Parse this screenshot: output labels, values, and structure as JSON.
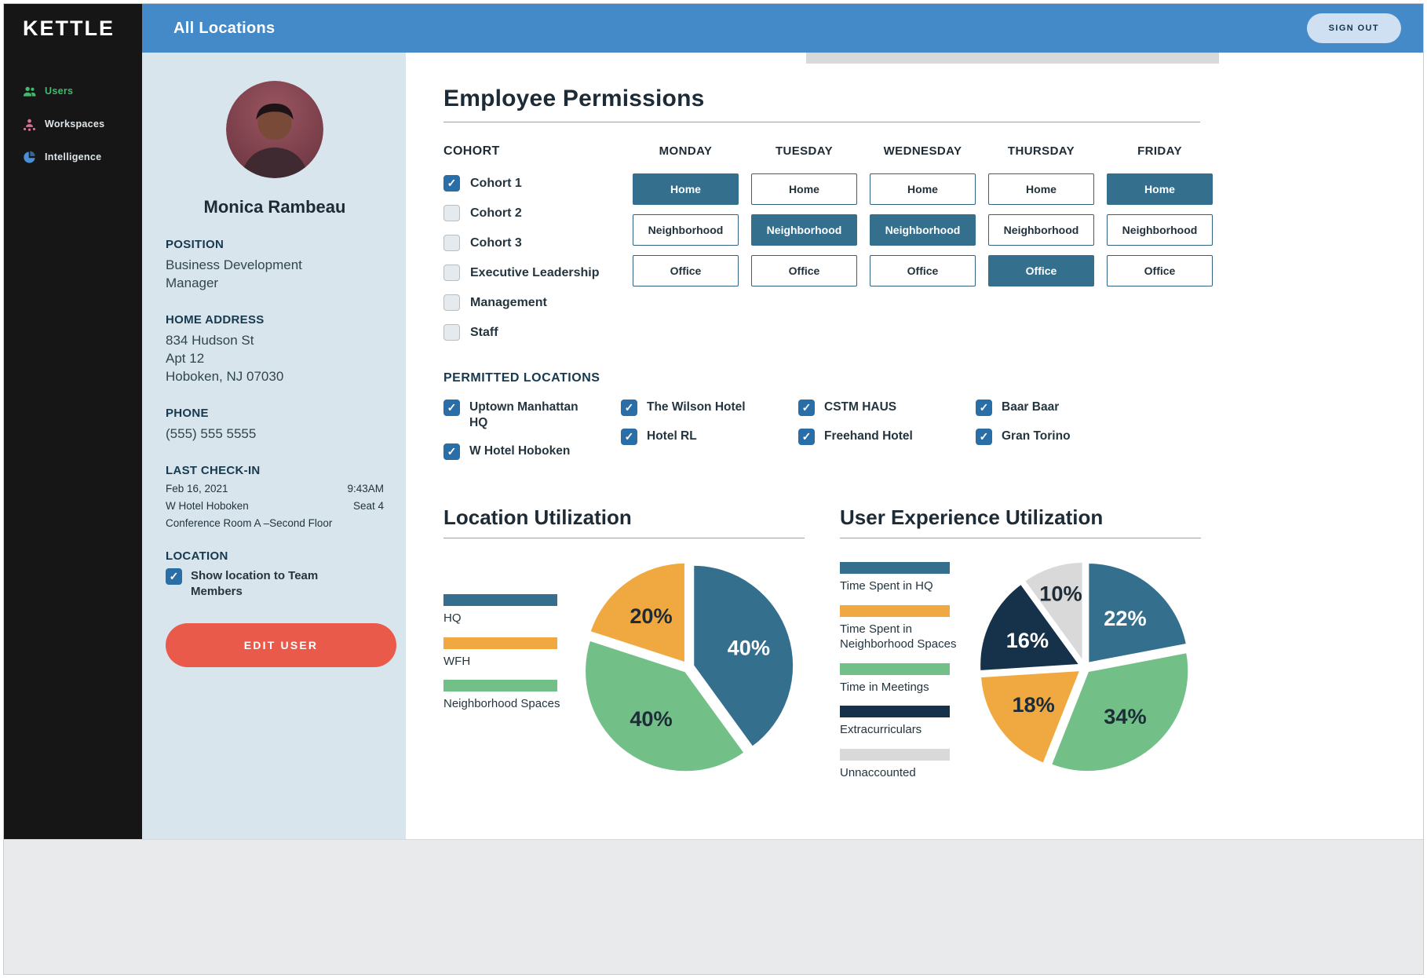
{
  "brand": {
    "logo": "KETTLE"
  },
  "topbar": {
    "title": "All Locations",
    "sign_out": "SIGN OUT"
  },
  "sidebar": {
    "items": [
      {
        "label": "Users",
        "icon": "users-icon",
        "icon_color": "#43b96e",
        "label_color": "#43b96e"
      },
      {
        "label": "Workspaces",
        "icon": "workspaces-icon",
        "icon_color": "#d87093",
        "label_color": "#dfe6ea"
      },
      {
        "label": "Intelligence",
        "icon": "intelligence-icon",
        "icon_color": "#4a90d9",
        "label_color": "#dfe6ea"
      }
    ]
  },
  "profile": {
    "name": "Monica Rambeau",
    "edit_button": "EDIT USER",
    "sections": {
      "position": {
        "label": "POSITION",
        "value": "Business Development Manager"
      },
      "home_address": {
        "label": "HOME ADDRESS",
        "lines": [
          "834 Hudson St",
          "Apt 12",
          "Hoboken, NJ 07030"
        ]
      },
      "phone": {
        "label": "PHONE",
        "value": "(555) 555 5555"
      },
      "last_checkin": {
        "label": "LAST CHECK-IN",
        "rows": [
          [
            "Feb 16, 2021",
            "9:43AM"
          ],
          [
            "W Hotel Hoboken",
            "Seat 4"
          ]
        ],
        "note": "Conference Room A –Second Floor"
      },
      "location": {
        "label": "LOCATION",
        "checkbox": {
          "label": "Show location to Team Members",
          "checked": true
        }
      }
    }
  },
  "permissions": {
    "title": "Employee Permissions",
    "cohort": {
      "label": "COHORT",
      "options": [
        {
          "label": "Cohort 1",
          "checked": true
        },
        {
          "label": "Cohort 2",
          "checked": false
        },
        {
          "label": "Cohort 3",
          "checked": false
        },
        {
          "label": "Executive Leadership",
          "checked": false
        },
        {
          "label": "Management",
          "checked": false
        },
        {
          "label": "Staff",
          "checked": false
        }
      ]
    },
    "days": [
      {
        "name": "MONDAY",
        "options": [
          {
            "label": "Home",
            "selected": true
          },
          {
            "label": "Neighborhood",
            "selected": false
          },
          {
            "label": "Office",
            "selected": false
          }
        ]
      },
      {
        "name": "TUESDAY",
        "options": [
          {
            "label": "Home",
            "selected": false
          },
          {
            "label": "Neighborhood",
            "selected": true
          },
          {
            "label": "Office",
            "selected": false
          }
        ]
      },
      {
        "name": "WEDNESDAY",
        "options": [
          {
            "label": "Home",
            "selected": false
          },
          {
            "label": "Neighborhood",
            "selected": true
          },
          {
            "label": "Office",
            "selected": false
          }
        ]
      },
      {
        "name": "THURSDAY",
        "options": [
          {
            "label": "Home",
            "selected": false
          },
          {
            "label": "Neighborhood",
            "selected": false
          },
          {
            "label": "Office",
            "selected": true
          }
        ]
      },
      {
        "name": "FRIDAY",
        "options": [
          {
            "label": "Home",
            "selected": true
          },
          {
            "label": "Neighborhood",
            "selected": false
          },
          {
            "label": "Office",
            "selected": false
          }
        ]
      }
    ],
    "locations": {
      "label": "PERMITTED LOCATIONS",
      "columns": [
        [
          {
            "label": "Uptown Manhattan HQ",
            "checked": true
          },
          {
            "label": "W Hotel Hoboken",
            "checked": true
          }
        ],
        [
          {
            "label": "The Wilson Hotel",
            "checked": true
          },
          {
            "label": "Hotel RL",
            "checked": true
          }
        ],
        [
          {
            "label": "CSTM HAUS",
            "checked": true
          },
          {
            "label": "Freehand Hotel",
            "checked": true
          }
        ],
        [
          {
            "label": "Baar Baar",
            "checked": true
          },
          {
            "label": "Gran Torino",
            "checked": true
          }
        ]
      ]
    }
  },
  "chart_data": [
    {
      "type": "pie",
      "title": "Location Utilization",
      "legend_position": "left",
      "legend": [
        {
          "label": "HQ",
          "color": "#356f8e"
        },
        {
          "label": "WFH",
          "color": "#f0a941"
        },
        {
          "label": "Neighborhood Spaces",
          "color": "#72c088"
        }
      ],
      "slices": [
        {
          "label": "HQ",
          "value": 40,
          "text": "40%",
          "color": "#356f8e"
        },
        {
          "label": "Neighborhood Spaces",
          "value": 40,
          "text": "40%",
          "color": "#72c088"
        },
        {
          "label": "WFH",
          "value": 20,
          "text": "20%",
          "color": "#f0a941"
        }
      ]
    },
    {
      "type": "pie",
      "title": "User Experience Utilization",
      "legend_position": "left",
      "legend": [
        {
          "label": "Time Spent in HQ",
          "color": "#356f8e"
        },
        {
          "label": "Time Spent in Neighborhood Spaces",
          "color": "#f0a941"
        },
        {
          "label": "Time in Meetings",
          "color": "#72c088"
        },
        {
          "label": "Extracurriculars",
          "color": "#16324a"
        },
        {
          "label": "Unnaccounted",
          "color": "#d9d9d9"
        }
      ],
      "slices": [
        {
          "label": "Time Spent in HQ",
          "value": 22,
          "text": "22%",
          "color": "#356f8e"
        },
        {
          "label": "Time in Meetings",
          "value": 34,
          "text": "34%",
          "color": "#72c088"
        },
        {
          "label": "Time Spent in Neighborhood Spaces",
          "value": 18,
          "text": "18%",
          "color": "#f0a941"
        },
        {
          "label": "Extracurriculars",
          "value": 16,
          "text": "16%",
          "color": "#16324a"
        },
        {
          "label": "Unnaccounted",
          "value": 10,
          "text": "10%",
          "color": "#d9d9d9"
        }
      ]
    }
  ]
}
